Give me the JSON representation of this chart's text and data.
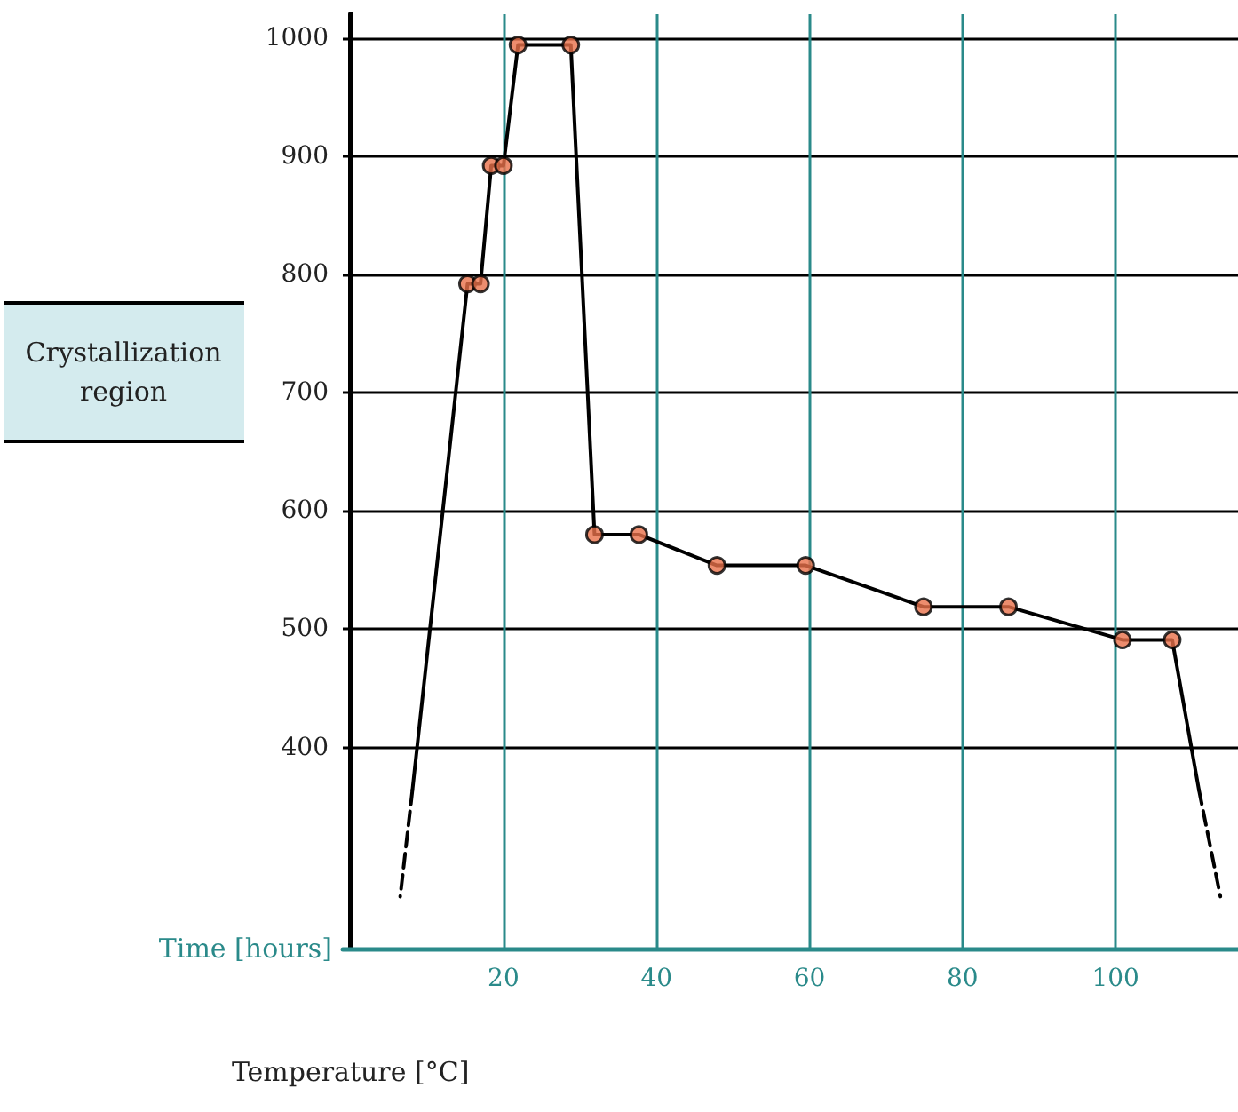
{
  "chart_data": {
    "type": "line",
    "xlabel": "Time [hours]",
    "ylabel": "Temperature [°C]",
    "annotations": [
      "Crystallization region"
    ],
    "xlim": [
      -1,
      116
    ],
    "xticks": [
      20,
      40,
      60,
      80,
      100
    ],
    "ylim": [
      230,
      1020
    ],
    "yticks": [
      400,
      500,
      600,
      700,
      800,
      900,
      1000
    ],
    "grid": true,
    "series": [
      {
        "color": "#000000",
        "line_style": "solid",
        "marker": "none",
        "x": [
          8.1,
          15.3,
          17,
          18.4,
          20,
          21.9,
          28.8,
          31.9,
          37.7,
          47.9,
          59.5,
          74.9,
          86,
          100.9,
          107.4,
          110.9
        ],
        "values": [
          364,
          792,
          792,
          892,
          892,
          994,
          994,
          580,
          580,
          554,
          554,
          519,
          519,
          491,
          491,
          364
        ]
      },
      {
        "color": "#000000",
        "line_style": "dashed",
        "marker": "none",
        "x": [
          8.1,
          6.5
        ],
        "values": [
          364,
          274
        ]
      },
      {
        "color": "#000000",
        "line_style": "dashed",
        "marker": "none",
        "x": [
          110.9,
          113.7
        ],
        "values": [
          364,
          274
        ]
      },
      {
        "type": "scatter",
        "color": "#e8704a",
        "marker": "circle",
        "x": [
          15.3,
          17,
          18.4,
          20,
          21.9,
          28.8,
          31.9,
          37.7,
          47.9,
          59.5,
          74.9,
          86,
          100.9,
          107.4
        ],
        "values": [
          792,
          792,
          892,
          892,
          994,
          994,
          580,
          580,
          554,
          554,
          519,
          519,
          491,
          491
        ]
      }
    ]
  }
}
